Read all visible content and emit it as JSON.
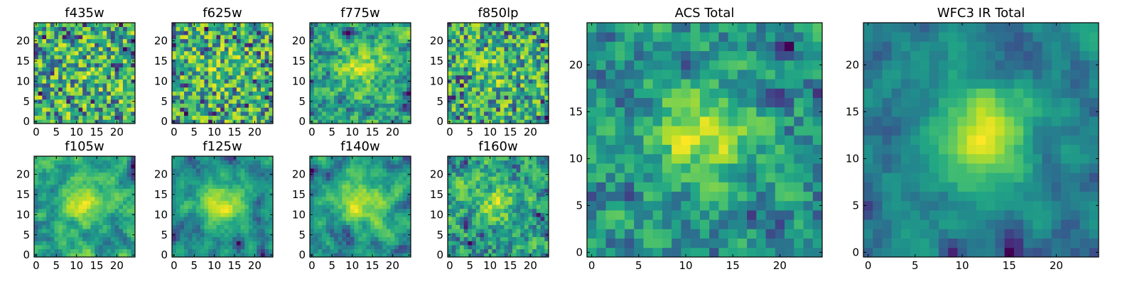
{
  "chart_data": [
    {
      "type": "heatmap",
      "title": "f435w",
      "grid_size": 25,
      "xlim": [
        -0.5,
        24.5
      ],
      "ylim": [
        -0.5,
        24.5
      ],
      "xticks": [
        0,
        5,
        10,
        15,
        20
      ],
      "yticks": [
        0,
        5,
        10,
        15,
        20
      ],
      "colormap": "viridis",
      "seed": 11,
      "noise_scale": 1.0,
      "smoothness": 0.1,
      "central_peak": 0.1
    },
    {
      "type": "heatmap",
      "title": "f625w",
      "grid_size": 25,
      "xlim": [
        -0.5,
        24.5
      ],
      "ylim": [
        -0.5,
        24.5
      ],
      "xticks": [
        0,
        5,
        10,
        15,
        20
      ],
      "yticks": [
        0,
        5,
        10,
        15,
        20
      ],
      "colormap": "viridis",
      "seed": 23,
      "noise_scale": 1.0,
      "smoothness": 0.1,
      "central_peak": 0.15
    },
    {
      "type": "heatmap",
      "title": "f775w",
      "grid_size": 25,
      "xlim": [
        -0.5,
        24.5
      ],
      "ylim": [
        -0.5,
        24.5
      ],
      "xticks": [
        0,
        5,
        10,
        15,
        20
      ],
      "yticks": [
        0,
        5,
        10,
        15,
        20
      ],
      "colormap": "viridis",
      "seed": 37,
      "noise_scale": 1.0,
      "smoothness": 0.15,
      "central_peak": 0.35
    },
    {
      "type": "heatmap",
      "title": "f850lp",
      "grid_size": 25,
      "xlim": [
        -0.5,
        24.5
      ],
      "ylim": [
        -0.5,
        24.5
      ],
      "xticks": [
        0,
        5,
        10,
        15,
        20
      ],
      "yticks": [
        0,
        5,
        10,
        15,
        20
      ],
      "colormap": "viridis",
      "seed": 41,
      "noise_scale": 1.0,
      "smoothness": 0.1,
      "central_peak": 0.2
    },
    {
      "type": "heatmap",
      "title": "f105w",
      "grid_size": 25,
      "xlim": [
        -0.5,
        24.5
      ],
      "ylim": [
        -0.5,
        24.5
      ],
      "xticks": [
        0,
        5,
        10,
        15,
        20
      ],
      "yticks": [
        0,
        5,
        10,
        15,
        20
      ],
      "colormap": "viridis",
      "seed": 53,
      "noise_scale": 1.0,
      "smoothness": 0.45,
      "central_peak": 0.35
    },
    {
      "type": "heatmap",
      "title": "f125w",
      "grid_size": 25,
      "xlim": [
        -0.5,
        24.5
      ],
      "ylim": [
        -0.5,
        24.5
      ],
      "xticks": [
        0,
        5,
        10,
        15,
        20
      ],
      "yticks": [
        0,
        5,
        10,
        15,
        20
      ],
      "colormap": "viridis",
      "seed": 67,
      "noise_scale": 1.0,
      "smoothness": 0.45,
      "central_peak": 0.55
    },
    {
      "type": "heatmap",
      "title": "f140w",
      "grid_size": 25,
      "xlim": [
        -0.5,
        24.5
      ],
      "ylim": [
        -0.5,
        24.5
      ],
      "xticks": [
        0,
        5,
        10,
        15,
        20
      ],
      "yticks": [
        0,
        5,
        10,
        15,
        20
      ],
      "colormap": "viridis",
      "seed": 79,
      "noise_scale": 1.0,
      "smoothness": 0.45,
      "central_peak": 0.5
    },
    {
      "type": "heatmap",
      "title": "f160w",
      "grid_size": 25,
      "xlim": [
        -0.5,
        24.5
      ],
      "ylim": [
        -0.5,
        24.5
      ],
      "xticks": [
        0,
        5,
        10,
        15,
        20
      ],
      "yticks": [
        0,
        5,
        10,
        15,
        20
      ],
      "colormap": "viridis",
      "seed": 83,
      "noise_scale": 1.0,
      "smoothness": 0.35,
      "central_peak": 0.35
    },
    {
      "type": "heatmap",
      "title": "ACS Total",
      "grid_size": 25,
      "xlim": [
        -0.5,
        24.5
      ],
      "ylim": [
        -0.5,
        24.5
      ],
      "xticks": [
        0,
        5,
        10,
        15,
        20
      ],
      "yticks": [
        0,
        5,
        10,
        15,
        20
      ],
      "colormap": "viridis",
      "seed": 97,
      "noise_scale": 1.0,
      "smoothness": 0.25,
      "central_peak": 0.55
    },
    {
      "type": "heatmap",
      "title": "WFC3 IR Total",
      "grid_size": 25,
      "xlim": [
        -0.5,
        24.5
      ],
      "ylim": [
        -0.5,
        24.5
      ],
      "xticks": [
        0,
        5,
        10,
        15,
        20
      ],
      "yticks": [
        0,
        5,
        10,
        15,
        20
      ],
      "colormap": "viridis",
      "seed": 101,
      "noise_scale": 1.0,
      "smoothness": 0.55,
      "central_peak": 0.85
    }
  ]
}
